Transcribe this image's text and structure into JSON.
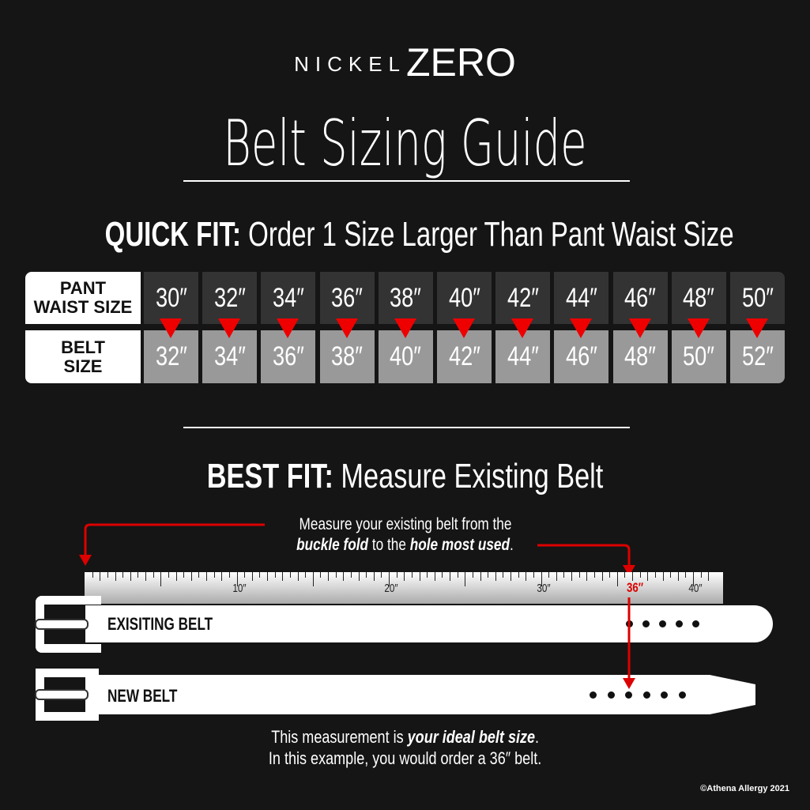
{
  "logo": {
    "prefix": "NICKEL",
    "brand": "ZERO"
  },
  "title": "Belt Sizing Guide",
  "quick_fit": {
    "heading": "QUICK FIT:",
    "text": " Order 1 Size Larger Than Pant Waist Size",
    "row_labels": {
      "pant_line1": "PANT",
      "pant_line2": "WAIST SIZE",
      "belt_line1": "BELT",
      "belt_line2": "SIZE"
    },
    "pant_sizes": [
      "30″",
      "32″",
      "34″",
      "36″",
      "38″",
      "40″",
      "42″",
      "44″",
      "46″",
      "48″",
      "50″"
    ],
    "belt_sizes": [
      "32″",
      "34″",
      "36″",
      "38″",
      "40″",
      "42″",
      "44″",
      "46″",
      "48″",
      "50″",
      "52″"
    ]
  },
  "best_fit": {
    "heading": "BEST FIT:",
    "text": " Measure Existing Belt",
    "instruction_line1": "Measure your existing belt from the",
    "instruction_bold1": "buckle fold",
    "instruction_mid": " to the ",
    "instruction_bold2": "hole most used",
    "instruction_end": ".",
    "ruler_labels": [
      "10″",
      "20″",
      "30″",
      "40″"
    ],
    "highlight_label": "36″",
    "existing_belt": "EXISITING BELT",
    "new_belt": "NEW BELT",
    "result_line1": "This measurement is ",
    "result_bold": "your ideal belt size",
    "result_end": ".",
    "result_line2": "In this example, you would order a 36″ belt."
  },
  "copyright": "©Athena Allergy 2021",
  "colors": {
    "background": "#151515",
    "accent": "#e00000",
    "pant_cell": "#333333",
    "belt_cell": "#999999"
  }
}
